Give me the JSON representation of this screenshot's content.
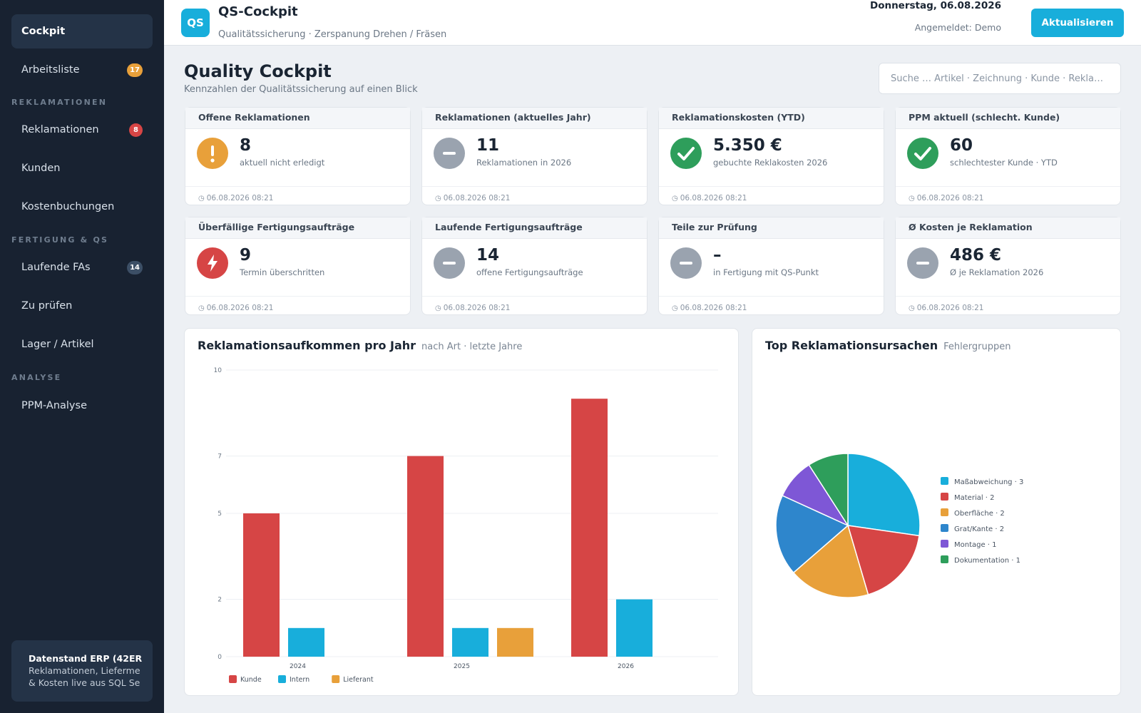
{
  "sidebar": {
    "items": [
      {
        "label": "Cockpit"
      },
      {
        "label": "Arbeitsliste",
        "badge": "17"
      },
      {
        "label": "Reklamationen",
        "badge": "8"
      },
      {
        "label": "Kunden"
      },
      {
        "label": "Kostenbuchungen"
      },
      {
        "label": "Laufende FAs",
        "badge": "14"
      },
      {
        "label": "Zu prüfen"
      },
      {
        "label": "Lager / Artikel"
      },
      {
        "label": "PPM-Analyse"
      }
    ],
    "sections": {
      "reklamationen": "REKLAMATIONEN",
      "fertigung": "FERTIGUNG & QS",
      "analyse": "ANALYSE"
    },
    "footer": {
      "title": "Datenstand ERP (42ER",
      "line1": "Reklamationen, Lieferme",
      "line2": "& Kosten live aus SQL Se"
    }
  },
  "header": {
    "logo": "QS",
    "title": "QS-Cockpit",
    "subtitle": "Qualitätssicherung · Zerspanung Drehen / Fräsen",
    "date": "Donnerstag, 06.08.2026",
    "user": "Angemeldet: Demo",
    "refresh_label": "Aktualisieren"
  },
  "page": {
    "title": "Quality Cockpit",
    "subtitle": "Kennzahlen der Qualitätssicherung auf einen Blick",
    "search_placeholder": "Suche … Artikel · Zeichnung · Kunde · Rekla…"
  },
  "kpis": [
    {
      "title": "Offene Reklamationen",
      "value": "8",
      "desc": "aktuell nicht erledigt",
      "time": "06.08.2026 08:21",
      "icon": "exclamation-icon",
      "color": "#e8a03a"
    },
    {
      "title": "Reklamationen (aktuelles Jahr)",
      "value": "11",
      "desc": "Reklamationen in 2026",
      "time": "06.08.2026 08:21",
      "icon": "minus-icon",
      "color": "#9aa3af"
    },
    {
      "title": "Reklamationskosten (YTD)",
      "value": "5.350 €",
      "desc": "gebuchte Reklakosten 2026",
      "time": "06.08.2026 08:21",
      "icon": "check-icon",
      "color": "#2e9e5b"
    },
    {
      "title": "PPM aktuell (schlecht. Kunde)",
      "value": "60",
      "desc": "schlechtester Kunde · YTD",
      "time": "06.08.2026 08:21",
      "icon": "check-icon",
      "color": "#2e9e5b"
    },
    {
      "title": "Überfällige Fertigungsaufträge",
      "value": "9",
      "desc": "Termin überschritten",
      "time": "06.08.2026 08:21",
      "icon": "lightning-icon",
      "color": "#d64545"
    },
    {
      "title": "Laufende Fertigungsaufträge",
      "value": "14",
      "desc": "offene Fertigungsaufträge",
      "time": "06.08.2026 08:21",
      "icon": "minus-icon",
      "color": "#9aa3af"
    },
    {
      "title": "Teile zur Prüfung",
      "value": "–",
      "desc": "in Fertigung mit QS-Punkt",
      "time": "06.08.2026 08:21",
      "icon": "minus-icon",
      "color": "#9aa3af"
    },
    {
      "title": "Ø Kosten je Reklamation",
      "value": "486 €",
      "desc": "Ø je Reklamation 2026",
      "time": "06.08.2026 08:21",
      "icon": "minus-icon",
      "color": "#9aa3af"
    }
  ],
  "bar_panel": {
    "title": "Reklamationsaufkommen pro Jahr",
    "subtitle": "nach Art · letzte Jahre"
  },
  "pie_panel": {
    "title": "Top Reklamationsursachen",
    "subtitle": "Fehlergruppen"
  },
  "chart_data": [
    {
      "type": "bar",
      "title": "Reklamationsaufkommen pro Jahr",
      "categories": [
        "2024",
        "2025",
        "2026"
      ],
      "series": [
        {
          "name": "Kunde",
          "color": "#d64545",
          "values": [
            5,
            7,
            9
          ]
        },
        {
          "name": "Intern",
          "color": "#18aedb",
          "values": [
            1,
            1,
            2
          ]
        },
        {
          "name": "Lieferant",
          "color": "#e8a03a",
          "values": [
            0,
            1,
            0
          ]
        }
      ],
      "yticks": [
        "0",
        "2",
        "5",
        "7",
        "10"
      ],
      "ylim": [
        0,
        10
      ],
      "grid": true,
      "legend": "bottom-left"
    },
    {
      "type": "pie",
      "title": "Top Reklamationsursachen",
      "slices": [
        {
          "label": "Maßabweichung",
          "value": 3,
          "color": "#18aedb"
        },
        {
          "label": "Material",
          "value": 2,
          "color": "#d64545"
        },
        {
          "label": "Oberfläche",
          "value": 2,
          "color": "#e8a03a"
        },
        {
          "label": "Grat/Kante",
          "value": 2,
          "color": "#2e86cc"
        },
        {
          "label": "Montage",
          "value": 1,
          "color": "#7e57d6"
        },
        {
          "label": "Dokumentation",
          "value": 1,
          "color": "#2e9e5b"
        }
      ],
      "legend": "right"
    }
  ]
}
